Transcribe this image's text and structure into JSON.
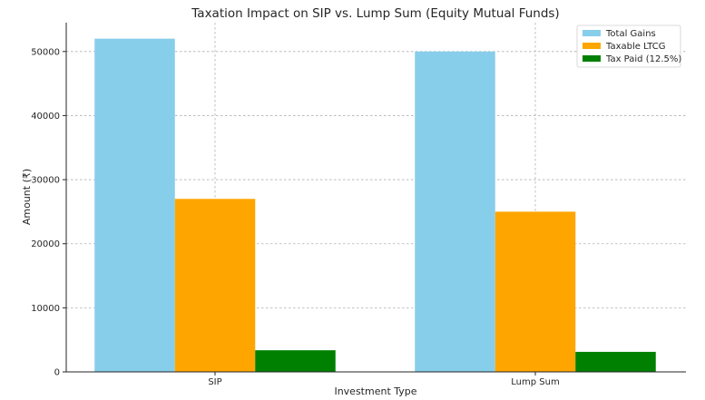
{
  "chart_data": {
    "type": "bar",
    "title": "Taxation Impact on SIP vs. Lump Sum (Equity Mutual Funds)",
    "xlabel": "Investment Type",
    "ylabel": "Amount (₹)",
    "categories": [
      "SIP",
      "Lump Sum"
    ],
    "series": [
      {
        "name": "Total Gains",
        "color": "#87ceeb",
        "values": [
          52000,
          50000
        ]
      },
      {
        "name": "Taxable LTCG",
        "color": "#ffa500",
        "values": [
          27000,
          25000
        ]
      },
      {
        "name": "Tax Paid (12.5%)",
        "color": "#008000",
        "values": [
          3375,
          3125
        ]
      }
    ],
    "ylim": [
      0,
      54500
    ],
    "yticks": [
      0,
      10000,
      20000,
      30000,
      40000,
      50000
    ],
    "grid": true,
    "legend_position": "top-right"
  }
}
